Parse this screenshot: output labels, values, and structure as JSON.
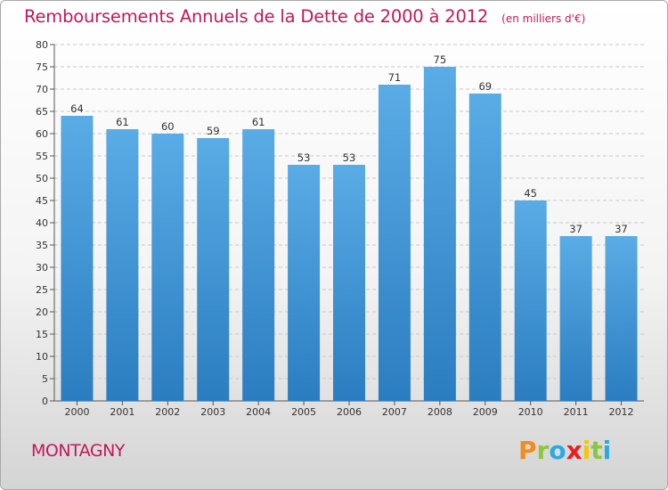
{
  "header": {
    "title": "Remboursements Annuels de la Dette de 2000 à 2012",
    "subtitle": "(en milliers d'€)"
  },
  "footer": {
    "commune": "MONTAGNY",
    "brand": "Proxiti",
    "brand_letters": [
      {
        "ch": "P",
        "color": "#f28c1c"
      },
      {
        "ch": "r",
        "color": "#8dc63f"
      },
      {
        "ch": "o",
        "color": "#29abe2"
      },
      {
        "ch": "x",
        "color": "#ed1c24"
      },
      {
        "ch": "i",
        "color": "#f7c600"
      },
      {
        "ch": "t",
        "color": "#8dc63f"
      },
      {
        "ch": "i",
        "color": "#29abe2"
      }
    ]
  },
  "colors": {
    "title": "#c2185b",
    "bar_top": "#5aace6",
    "bar_bottom": "#2a7dc0",
    "grid": "#c8c8c8",
    "axis": "#555555"
  },
  "chart_data": {
    "type": "bar",
    "title": "Remboursements Annuels de la Dette de 2000 à 2012",
    "subtitle": "(en milliers d'€)",
    "xlabel": "",
    "ylabel": "",
    "categories": [
      "2000",
      "2001",
      "2002",
      "2003",
      "2004",
      "2005",
      "2006",
      "2007",
      "2008",
      "2009",
      "2010",
      "2011",
      "2012"
    ],
    "values": [
      64,
      61,
      60,
      59,
      61,
      53,
      53,
      71,
      75,
      69,
      45,
      37,
      37
    ],
    "ylim": [
      0,
      80
    ],
    "yticks": [
      0,
      5,
      10,
      15,
      20,
      25,
      30,
      35,
      40,
      45,
      50,
      55,
      60,
      65,
      70,
      75,
      80
    ],
    "grid": "horizontal dashed",
    "legend": "none",
    "data_labels": true
  }
}
